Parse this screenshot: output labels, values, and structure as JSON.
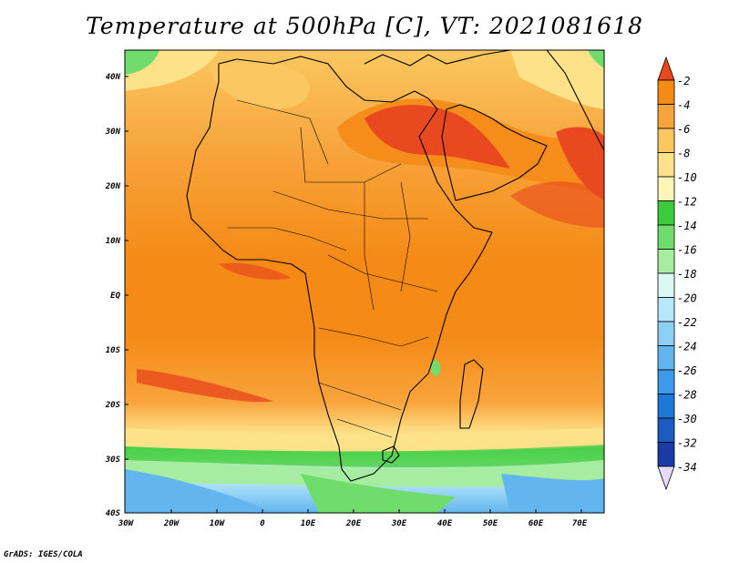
{
  "title": "Temperature at 500hPa [C], VT: 2021081618",
  "credit": "GrADS: IGES/COLA",
  "map": {
    "lat_labels": [
      "40N",
      "30N",
      "20N",
      "10N",
      "EQ",
      "10S",
      "20S",
      "30S",
      "40S"
    ],
    "lon_labels": [
      "30W",
      "20W",
      "10W",
      "0",
      "10E",
      "20E",
      "30E",
      "40E",
      "50E",
      "60E",
      "70E"
    ]
  },
  "colorbar": {
    "labels": [
      "-2",
      "-4",
      "-6",
      "-8",
      "-10",
      "-12",
      "-14",
      "-16",
      "-18",
      "-20",
      "-22",
      "-24",
      "-26",
      "-28",
      "-30",
      "-32",
      "-34"
    ],
    "colors": [
      "#e8491e",
      "#f58a16",
      "#f8a43c",
      "#fac760",
      "#fde28a",
      "#fdf5b8",
      "#3ccb3c",
      "#6fdc6c",
      "#a6ecA1",
      "#dcf8f3",
      "#b7e7fb",
      "#8ecff6",
      "#62b5ef",
      "#3c9aea",
      "#1f78d8",
      "#1e5bbf",
      "#1a3aa6",
      "#15208a"
    ]
  },
  "legend_colors": {
    "arrow_top": "#e8491e",
    "arrow_bottom": "#e6dcfa",
    "coast": "#000000"
  }
}
